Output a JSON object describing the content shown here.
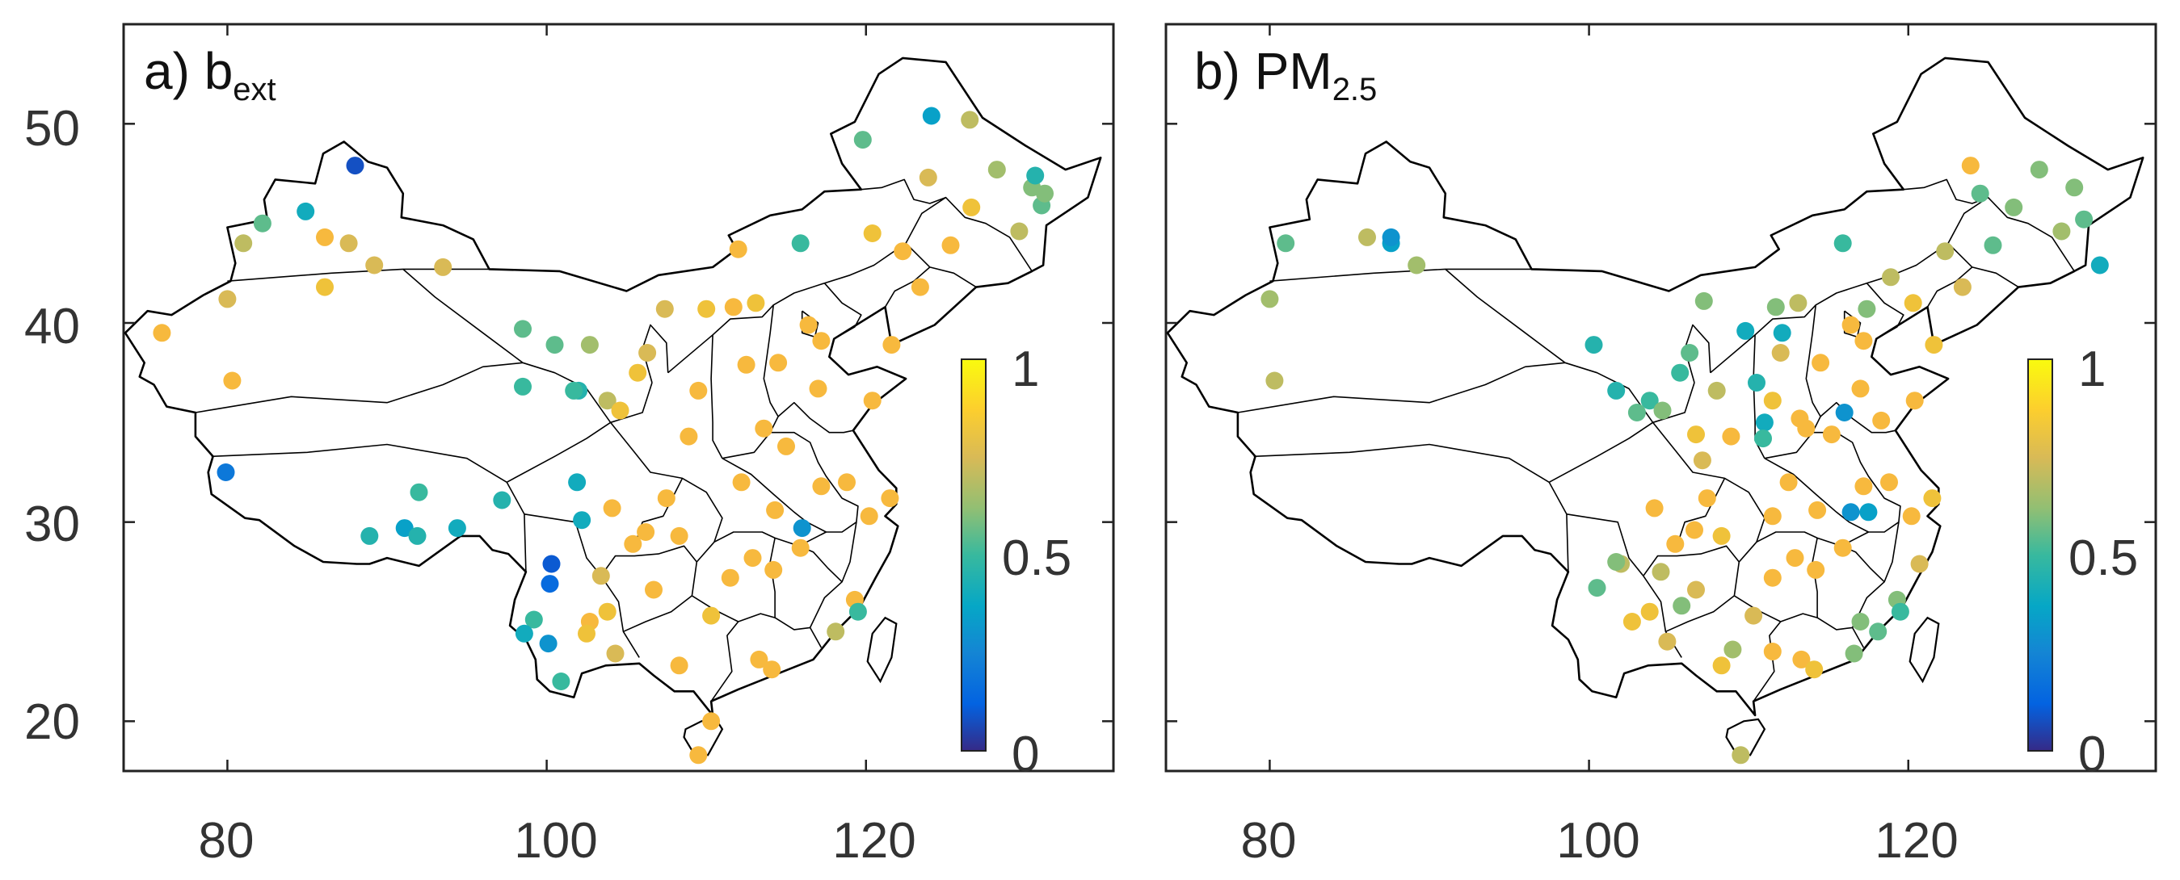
{
  "figure": {
    "x_ticks": [
      "80",
      "100",
      "120"
    ],
    "y_ticks": [
      "50",
      "40",
      "30",
      "20"
    ],
    "lon_range": [
      73.5,
      135.5
    ],
    "lat_range": [
      17.5,
      55
    ],
    "colormap": "parula",
    "colors": {
      "yellow": "#f9fb0e",
      "orange": "#fbb93b",
      "green": "#7fc241",
      "teal": "#1fb5b3",
      "blue": "#2a7ce0",
      "navy": "#3d26a8"
    }
  },
  "panels": [
    {
      "id": "a",
      "label": "a) b",
      "label_sub": "ext",
      "colorbar": {
        "ticks": [
          "1",
          "0.5",
          "0"
        ],
        "range": [
          0,
          1
        ]
      },
      "stations": [
        [
          75.9,
          39.5,
          0.85
        ],
        [
          80.0,
          41.2,
          0.75
        ],
        [
          80.3,
          37.1,
          0.85
        ],
        [
          81.0,
          44.0,
          0.7
        ],
        [
          82.2,
          45.0,
          0.55
        ],
        [
          84.9,
          45.6,
          0.4
        ],
        [
          86.1,
          44.3,
          0.85
        ],
        [
          87.6,
          44.0,
          0.75
        ],
        [
          86.1,
          41.8,
          0.8
        ],
        [
          88.0,
          47.9,
          0.08
        ],
        [
          89.2,
          42.9,
          0.75
        ],
        [
          93.5,
          42.8,
          0.75
        ],
        [
          79.9,
          32.5,
          0.2
        ],
        [
          88.9,
          29.3,
          0.45
        ],
        [
          91.1,
          29.7,
          0.35
        ],
        [
          91.9,
          29.3,
          0.45
        ],
        [
          94.4,
          29.7,
          0.4
        ],
        [
          92.0,
          31.5,
          0.5
        ],
        [
          97.2,
          31.1,
          0.45
        ],
        [
          98.5,
          39.7,
          0.55
        ],
        [
          100.3,
          27.9,
          0.1
        ],
        [
          100.2,
          26.9,
          0.15
        ],
        [
          99.2,
          25.1,
          0.5
        ],
        [
          98.6,
          24.4,
          0.4
        ],
        [
          100.9,
          22.0,
          0.5
        ],
        [
          100.1,
          23.9,
          0.3
        ],
        [
          102.7,
          25.0,
          0.85
        ],
        [
          102.5,
          24.4,
          0.8
        ],
        [
          103.8,
          25.5,
          0.8
        ],
        [
          104.3,
          23.4,
          0.75
        ],
        [
          102.2,
          30.1,
          0.4
        ],
        [
          101.9,
          32.0,
          0.4
        ],
        [
          102.0,
          36.6,
          0.45
        ],
        [
          101.7,
          36.6,
          0.5
        ],
        [
          103.8,
          36.1,
          0.7
        ],
        [
          104.6,
          35.6,
          0.8
        ],
        [
          106.3,
          38.5,
          0.75
        ],
        [
          105.7,
          37.5,
          0.8
        ],
        [
          106.2,
          29.5,
          0.9
        ],
        [
          106.7,
          26.6,
          0.85
        ],
        [
          108.9,
          34.3,
          0.9
        ],
        [
          107.5,
          31.2,
          0.85
        ],
        [
          109.5,
          36.6,
          0.85
        ],
        [
          110.3,
          25.3,
          0.8
        ],
        [
          108.3,
          22.8,
          0.9
        ],
        [
          109.5,
          18.3,
          0.9
        ],
        [
          110.3,
          20.0,
          0.9
        ],
        [
          113.3,
          23.1,
          0.9
        ],
        [
          114.1,
          22.6,
          0.9
        ],
        [
          112.9,
          28.2,
          0.9
        ],
        [
          114.3,
          30.6,
          0.9
        ],
        [
          113.6,
          34.7,
          0.95
        ],
        [
          117.2,
          31.8,
          0.9
        ],
        [
          118.8,
          32.0,
          0.95
        ],
        [
          120.2,
          30.3,
          0.95
        ],
        [
          121.5,
          31.2,
          0.9
        ],
        [
          119.3,
          26.1,
          0.85
        ],
        [
          118.1,
          24.5,
          0.7
        ],
        [
          115.9,
          28.7,
          0.9
        ],
        [
          116.4,
          39.9,
          0.9
        ],
        [
          117.2,
          39.1,
          0.95
        ],
        [
          114.5,
          38.0,
          0.95
        ],
        [
          112.5,
          37.9,
          0.9
        ],
        [
          111.7,
          40.8,
          0.85
        ],
        [
          113.1,
          41.0,
          0.8
        ],
        [
          117.0,
          36.7,
          0.95
        ],
        [
          120.4,
          36.1,
          0.9
        ],
        [
          121.6,
          38.9,
          0.9
        ],
        [
          123.4,
          41.8,
          0.9
        ],
        [
          125.3,
          43.9,
          0.85
        ],
        [
          126.6,
          45.8,
          0.8
        ],
        [
          123.9,
          47.3,
          0.75
        ],
        [
          119.8,
          49.2,
          0.55
        ],
        [
          124.1,
          50.4,
          0.35
        ],
        [
          126.5,
          50.2,
          0.7
        ],
        [
          129.6,
          44.6,
          0.7
        ],
        [
          130.4,
          46.8,
          0.6
        ],
        [
          131.0,
          45.9,
          0.55
        ],
        [
          130.6,
          47.4,
          0.45
        ],
        [
          128.2,
          47.7,
          0.65
        ],
        [
          131.2,
          46.5,
          0.6
        ],
        [
          115.9,
          44.0,
          0.5
        ],
        [
          120.4,
          44.5,
          0.8
        ],
        [
          122.3,
          43.6,
          0.85
        ],
        [
          112.0,
          43.7,
          0.85
        ],
        [
          116.0,
          29.7,
          0.3
        ],
        [
          119.5,
          25.5,
          0.5
        ],
        [
          114.2,
          27.6,
          0.85
        ],
        [
          111.5,
          27.2,
          0.9
        ],
        [
          105.4,
          28.9,
          0.85
        ],
        [
          104.1,
          30.7,
          0.9
        ],
        [
          110.0,
          40.7,
          0.8
        ],
        [
          107.4,
          40.7,
          0.75
        ],
        [
          102.7,
          38.9,
          0.65
        ],
        [
          100.5,
          38.9,
          0.55
        ],
        [
          98.5,
          36.8,
          0.5
        ],
        [
          103.4,
          27.3,
          0.75
        ],
        [
          108.3,
          29.3,
          0.85
        ],
        [
          112.2,
          32.0,
          0.9
        ],
        [
          115.0,
          33.8,
          0.9
        ]
      ]
    },
    {
      "id": "b",
      "label": "b) PM",
      "label_sub": "2.5",
      "colorbar": {
        "ticks": [
          "1",
          "0.5",
          "0"
        ],
        "range": [
          0,
          1
        ]
      },
      "stations": [
        [
          80.3,
          37.1,
          0.7
        ],
        [
          80.0,
          41.2,
          0.65
        ],
        [
          81.0,
          44.0,
          0.55
        ],
        [
          86.1,
          44.3,
          0.7
        ],
        [
          87.6,
          44.0,
          0.35
        ],
        [
          87.6,
          44.3,
          0.3
        ],
        [
          89.2,
          42.9,
          0.65
        ],
        [
          100.3,
          38.9,
          0.45
        ],
        [
          101.7,
          36.6,
          0.45
        ],
        [
          103.8,
          36.1,
          0.5
        ],
        [
          103.0,
          35.5,
          0.55
        ],
        [
          104.6,
          35.6,
          0.6
        ],
        [
          106.3,
          38.5,
          0.55
        ],
        [
          105.7,
          37.5,
          0.5
        ],
        [
          107.2,
          41.1,
          0.6
        ],
        [
          111.7,
          40.8,
          0.6
        ],
        [
          112.0,
          38.5,
          0.75
        ],
        [
          111.5,
          36.1,
          0.8
        ],
        [
          111.0,
          35.0,
          0.4
        ],
        [
          110.5,
          37.0,
          0.45
        ],
        [
          113.1,
          41.0,
          0.7
        ],
        [
          112.1,
          39.5,
          0.4
        ],
        [
          114.5,
          38.0,
          0.9
        ],
        [
          116.4,
          39.9,
          0.9
        ],
        [
          117.2,
          39.1,
          0.9
        ],
        [
          117.0,
          36.7,
          0.95
        ],
        [
          118.3,
          35.1,
          0.9
        ],
        [
          120.4,
          36.1,
          0.85
        ],
        [
          113.6,
          34.7,
          0.95
        ],
        [
          108.9,
          34.3,
          0.85
        ],
        [
          106.7,
          34.4,
          0.8
        ],
        [
          107.1,
          33.1,
          0.75
        ],
        [
          104.1,
          30.7,
          0.9
        ],
        [
          105.4,
          28.9,
          0.85
        ],
        [
          106.6,
          29.6,
          0.9
        ],
        [
          106.7,
          26.6,
          0.75
        ],
        [
          108.3,
          29.3,
          0.8
        ],
        [
          110.3,
          25.3,
          0.75
        ],
        [
          108.3,
          22.8,
          0.8
        ],
        [
          109.5,
          18.3,
          0.7
        ],
        [
          113.3,
          23.1,
          0.85
        ],
        [
          114.1,
          22.6,
          0.8
        ],
        [
          112.9,
          28.2,
          0.9
        ],
        [
          114.3,
          30.6,
          0.9
        ],
        [
          117.2,
          31.8,
          0.9
        ],
        [
          118.8,
          32.0,
          0.9
        ],
        [
          120.2,
          30.3,
          0.85
        ],
        [
          121.5,
          31.2,
          0.8
        ],
        [
          119.3,
          26.1,
          0.6
        ],
        [
          118.1,
          24.5,
          0.55
        ],
        [
          115.9,
          28.7,
          0.85
        ],
        [
          116.4,
          30.5,
          0.3
        ],
        [
          117.5,
          30.5,
          0.35
        ],
        [
          114.2,
          27.6,
          0.85
        ],
        [
          111.5,
          27.2,
          0.85
        ],
        [
          102.7,
          25.0,
          0.8
        ],
        [
          103.8,
          25.5,
          0.8
        ],
        [
          102.0,
          27.9,
          0.7
        ],
        [
          100.5,
          26.7,
          0.55
        ],
        [
          101.7,
          28.0,
          0.6
        ],
        [
          123.4,
          41.8,
          0.75
        ],
        [
          122.3,
          43.6,
          0.7
        ],
        [
          125.3,
          43.9,
          0.55
        ],
        [
          126.6,
          45.8,
          0.6
        ],
        [
          123.9,
          47.9,
          0.95
        ],
        [
          128.2,
          47.7,
          0.6
        ],
        [
          129.6,
          44.6,
          0.65
        ],
        [
          130.4,
          46.8,
          0.6
        ],
        [
          131.0,
          45.2,
          0.55
        ],
        [
          124.5,
          46.5,
          0.55
        ],
        [
          132.0,
          42.9,
          0.4
        ],
        [
          121.6,
          38.9,
          0.8
        ],
        [
          120.3,
          41.0,
          0.8
        ],
        [
          118.9,
          42.3,
          0.7
        ],
        [
          117.4,
          40.7,
          0.6
        ],
        [
          115.9,
          44.0,
          0.5
        ],
        [
          109.8,
          39.6,
          0.4
        ],
        [
          108.0,
          36.6,
          0.7
        ],
        [
          113.2,
          35.2,
          0.95
        ],
        [
          116.0,
          35.5,
          0.3
        ],
        [
          110.9,
          34.2,
          0.5
        ],
        [
          115.2,
          34.4,
          0.9
        ],
        [
          112.5,
          32.0,
          0.9
        ],
        [
          111.5,
          30.3,
          0.85
        ],
        [
          107.4,
          31.2,
          0.85
        ],
        [
          104.5,
          27.5,
          0.7
        ],
        [
          105.8,
          25.8,
          0.6
        ],
        [
          104.9,
          24.0,
          0.75
        ],
        [
          109.0,
          23.6,
          0.65
        ],
        [
          111.5,
          23.5,
          0.85
        ],
        [
          116.6,
          23.4,
          0.6
        ],
        [
          119.5,
          25.5,
          0.5
        ],
        [
          120.7,
          27.9,
          0.75
        ],
        [
          117.0,
          25.0,
          0.6
        ]
      ]
    }
  ]
}
